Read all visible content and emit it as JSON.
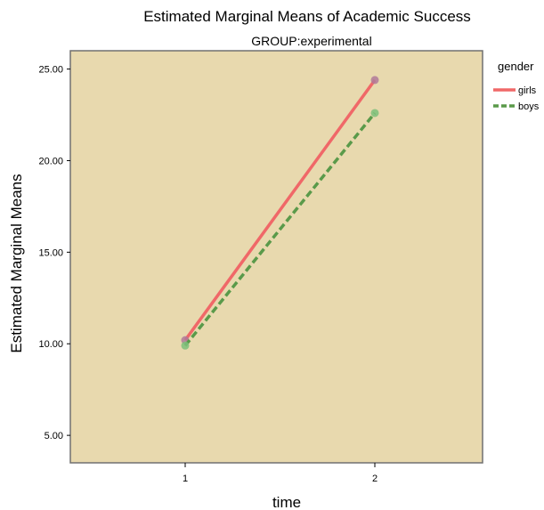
{
  "chart_data": {
    "type": "line",
    "title": "Estimated Marginal Means of Academic Success",
    "subtitle": "GROUP:experimental",
    "xlabel": "time",
    "ylabel": "Estimated Marginal Means",
    "categories": [
      "1",
      "2"
    ],
    "ylim": [
      3.5,
      26.0
    ],
    "yticks": [
      5,
      10,
      15,
      20,
      25
    ],
    "ytick_labels": [
      "5.00",
      "10.00",
      "15.00",
      "20.00",
      "25.00"
    ],
    "grid": false,
    "legend": {
      "title": "gender",
      "placement": "right"
    },
    "series": [
      {
        "name": "girls",
        "values": [
          10.2,
          24.4
        ],
        "color": "#f06868",
        "dash": "solid",
        "marker_color": "#b07a9a"
      },
      {
        "name": "boys",
        "values": [
          9.9,
          22.6
        ],
        "color": "#5a9a4a",
        "dash": "dashed",
        "marker_color": "#7cc07a"
      }
    ],
    "background_color": "#e8d9ae",
    "border_color": "#707070"
  }
}
